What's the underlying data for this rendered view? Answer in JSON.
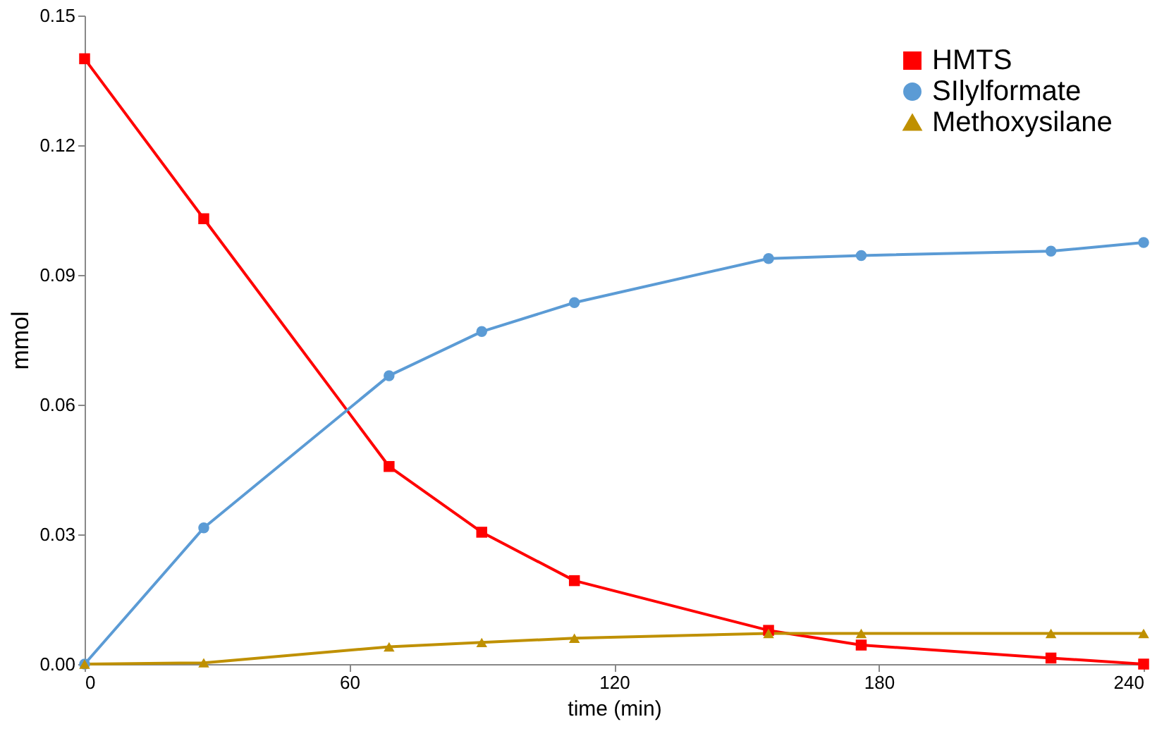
{
  "chart_data": {
    "type": "line",
    "xlabel": "time (min)",
    "ylabel": "mmol",
    "x": [
      0,
      27,
      69,
      90,
      111,
      155,
      176,
      219,
      240
    ],
    "series": [
      {
        "name": "HMTS",
        "color": "#ff0000",
        "marker": "square",
        "values": [
          0.14,
          0.103,
          0.0457,
          0.0305,
          0.0193,
          0.0078,
          0.0044,
          0.0014,
          0
        ]
      },
      {
        "name": "SIlylformate",
        "color": "#5b9bd5",
        "marker": "circle",
        "values": [
          0,
          0.0315,
          0.0667,
          0.0769,
          0.0836,
          0.0938,
          0.0945,
          0.0955,
          0.0975
        ]
      },
      {
        "name": "Methoxysilane",
        "color": "#bf9000",
        "marker": "triangle",
        "values": [
          0,
          0.0003,
          0.004,
          0.005,
          0.006,
          0.0071,
          0.0071,
          0.0071,
          0.0071
        ]
      }
    ],
    "xlim": [
      0,
      240
    ],
    "xticks": [
      0,
      60,
      120,
      180,
      240
    ],
    "ylim": [
      0,
      0.15
    ],
    "yticks": [
      {
        "value": 0,
        "label": "0.00"
      },
      {
        "value": 0.03,
        "label": "0.03"
      },
      {
        "value": 0.06,
        "label": "0.06"
      },
      {
        "value": 0.09,
        "label": "0.09"
      },
      {
        "value": 0.12,
        "label": "0.12"
      },
      {
        "value": 0.15,
        "label": "0.15"
      }
    ],
    "grid": false,
    "legend": "top right",
    "line_style": "solid"
  }
}
